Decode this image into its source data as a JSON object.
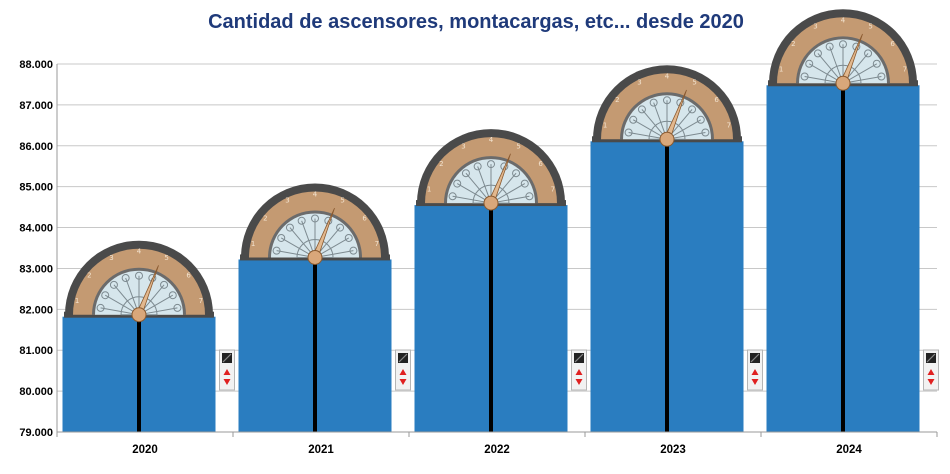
{
  "chart_data": {
    "type": "bar",
    "title": "Cantidad de ascensores, montacargas, etc... desde 2020",
    "xlabel": "",
    "ylabel": "",
    "categories": [
      "2020",
      "2021",
      "2022",
      "2023",
      "2024"
    ],
    "values": [
      81820,
      83220,
      84550,
      86110,
      87480
    ],
    "ylim": [
      79000,
      88000
    ],
    "yticks": [
      79000,
      80000,
      81000,
      82000,
      83000,
      84000,
      85000,
      86000,
      87000,
      88000
    ],
    "ytick_labels": [
      "79.000",
      "80.000",
      "81.000",
      "82.000",
      "83.000",
      "84.000",
      "85.000",
      "86.000",
      "87.000",
      "88.000"
    ],
    "dial_labels": [
      "1",
      "2",
      "3",
      "4",
      "5",
      "6",
      "7"
    ],
    "grid": true,
    "legend": "none",
    "colors": {
      "bar": "#2a7dc0",
      "title": "#1f3a7a",
      "grid": "#c8c8c8",
      "dial_ring": "#c49a72",
      "dial_frame": "#4a4a4a",
      "dial_glass": "#d6e6ec",
      "door_line": "#000000"
    },
    "icons": [
      "elevator-dial-icon",
      "elevator-call-panel-icon"
    ]
  }
}
